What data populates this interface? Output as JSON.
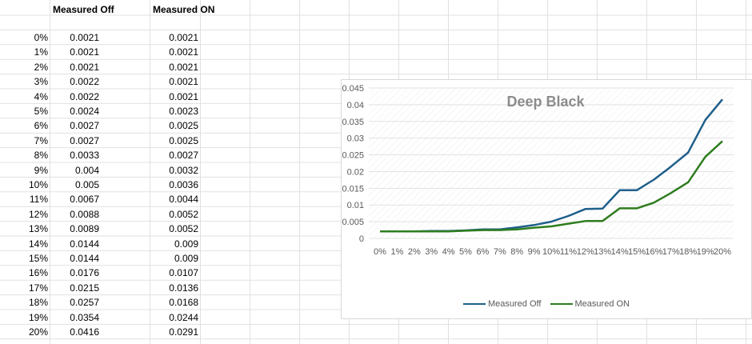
{
  "sheet": {
    "headers": {
      "col_b": "Measured Off",
      "col_d": "Measured ON"
    },
    "rows": [
      [
        "0%",
        "0.0021",
        "0.0021"
      ],
      [
        "1%",
        "0.0021",
        "0.0021"
      ],
      [
        "2%",
        "0.0021",
        "0.0021"
      ],
      [
        "3%",
        "0.0022",
        "0.0021"
      ],
      [
        "4%",
        "0.0022",
        "0.0021"
      ],
      [
        "5%",
        "0.0024",
        "0.0023"
      ],
      [
        "6%",
        "0.0027",
        "0.0025"
      ],
      [
        "7%",
        "0.0027",
        "0.0025"
      ],
      [
        "8%",
        "0.0033",
        "0.0027"
      ],
      [
        "9%",
        "0.004",
        "0.0032"
      ],
      [
        "10%",
        "0.005",
        "0.0036"
      ],
      [
        "11%",
        "0.0067",
        "0.0044"
      ],
      [
        "12%",
        "0.0088",
        "0.0052"
      ],
      [
        "13%",
        "0.0089",
        "0.0052"
      ],
      [
        "14%",
        "0.0144",
        "0.009"
      ],
      [
        "15%",
        "0.0144",
        "0.009"
      ],
      [
        "16%",
        "0.0176",
        "0.0107"
      ],
      [
        "17%",
        "0.0215",
        "0.0136"
      ],
      [
        "18%",
        "0.0257",
        "0.0168"
      ],
      [
        "19%",
        "0.0354",
        "0.0244"
      ],
      [
        "20%",
        "0.0416",
        "0.0291"
      ]
    ]
  },
  "colors": {
    "off": "#1f5f8b",
    "on": "#2e7d1f",
    "title": "#8c8c8c",
    "gridline": "#e2e2e2"
  },
  "chart_data": {
    "type": "line",
    "title": "Deep Black",
    "categories": [
      "0%",
      "1%",
      "2%",
      "3%",
      "4%",
      "5%",
      "6%",
      "7%",
      "8%",
      "9%",
      "10%",
      "11%",
      "12%",
      "13%",
      "14%",
      "15%",
      "16%",
      "17%",
      "18%",
      "19%",
      "20%"
    ],
    "series": [
      {
        "name": "Measured Off",
        "values": [
          0.0021,
          0.0021,
          0.0021,
          0.0022,
          0.0022,
          0.0024,
          0.0027,
          0.0027,
          0.0033,
          0.004,
          0.005,
          0.0067,
          0.0088,
          0.0089,
          0.0144,
          0.0144,
          0.0176,
          0.0215,
          0.0257,
          0.0354,
          0.0416
        ]
      },
      {
        "name": "Measured ON",
        "values": [
          0.0021,
          0.0021,
          0.0021,
          0.0021,
          0.0021,
          0.0023,
          0.0025,
          0.0025,
          0.0027,
          0.0032,
          0.0036,
          0.0044,
          0.0052,
          0.0052,
          0.009,
          0.009,
          0.0107,
          0.0136,
          0.0168,
          0.0244,
          0.0291
        ]
      }
    ],
    "y_ticks": [
      "0",
      "0.005",
      "0.01",
      "0.015",
      "0.02",
      "0.025",
      "0.03",
      "0.035",
      "0.04",
      "0.045"
    ],
    "ylim": [
      0,
      0.045
    ],
    "legend": "bottom"
  }
}
